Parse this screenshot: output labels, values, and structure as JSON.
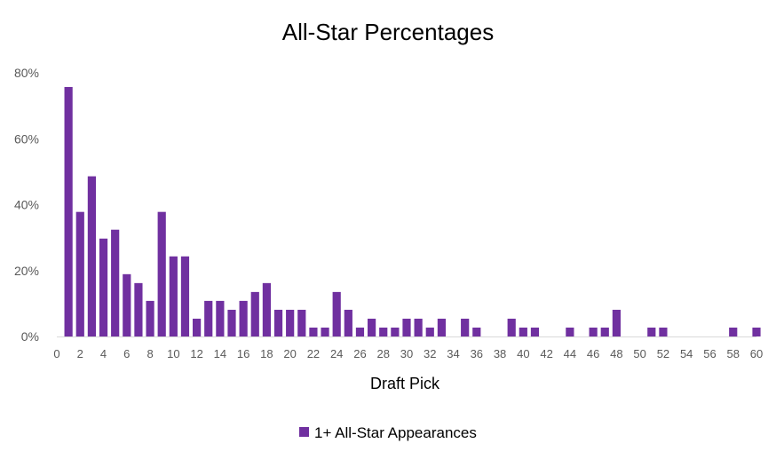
{
  "chart_data": {
    "type": "bar",
    "title": "All-Star Percentages",
    "xlabel": "Draft Pick",
    "ylabel": "",
    "ylim": [
      0,
      0.8
    ],
    "yticks": [
      "0%",
      "20%",
      "40%",
      "60%",
      "80%"
    ],
    "xlim": [
      0,
      60
    ],
    "xticks": [
      "0",
      "2",
      "4",
      "6",
      "8",
      "10",
      "12",
      "14",
      "16",
      "18",
      "20",
      "22",
      "24",
      "26",
      "28",
      "30",
      "32",
      "34",
      "36",
      "38",
      "40",
      "42",
      "44",
      "46",
      "48",
      "50",
      "52",
      "54",
      "56",
      "58",
      "60"
    ],
    "grid": false,
    "legend_position": "bottom",
    "color": "#7030A0",
    "x": [
      1,
      2,
      3,
      4,
      5,
      6,
      7,
      8,
      9,
      10,
      11,
      12,
      13,
      14,
      15,
      16,
      17,
      18,
      19,
      20,
      21,
      22,
      23,
      24,
      25,
      26,
      27,
      28,
      29,
      30,
      31,
      32,
      33,
      34,
      35,
      36,
      37,
      38,
      39,
      40,
      41,
      42,
      43,
      44,
      45,
      46,
      47,
      48,
      49,
      50,
      51,
      52,
      53,
      54,
      55,
      56,
      57,
      58,
      59,
      60
    ],
    "series": [
      {
        "name": "1+ All-Star Appearances",
        "values": [
          0.757,
          0.378,
          0.486,
          0.297,
          0.324,
          0.189,
          0.162,
          0.108,
          0.378,
          0.243,
          0.243,
          0.054,
          0.108,
          0.108,
          0.081,
          0.108,
          0.135,
          0.162,
          0.081,
          0.081,
          0.081,
          0.027,
          0.027,
          0.135,
          0.081,
          0.027,
          0.054,
          0.027,
          0.027,
          0.054,
          0.054,
          0.027,
          0.054,
          0,
          0.054,
          0.027,
          0,
          0,
          0.054,
          0.027,
          0.027,
          0,
          0,
          0.027,
          0,
          0.027,
          0.027,
          0.081,
          0,
          0,
          0.027,
          0.027,
          0,
          0,
          0,
          0,
          0,
          0.027,
          0,
          0.027
        ]
      }
    ]
  }
}
